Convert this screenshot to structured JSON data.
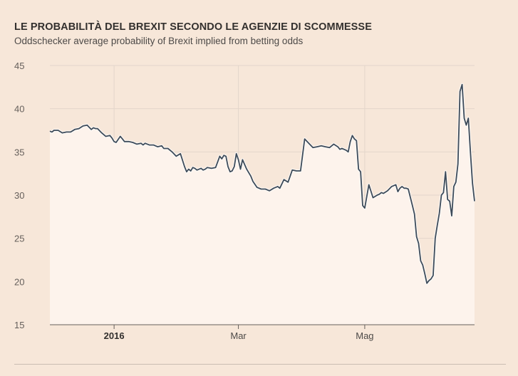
{
  "header": {
    "title": "LE PROBABILITÀ DEL BREXIT SECONDO LE AGENZIE DI SCOMMESSE",
    "subtitle": "Oddschecker average probability of Brexit implied from betting odds"
  },
  "colors": {
    "background": "#f7e7d9",
    "plot_fill": "#fdf3ec",
    "line": "#3d4b5a",
    "grid": "#e3d6cb",
    "text": "#33302e"
  },
  "chart_data": {
    "type": "area",
    "title": "LE PROBABILITÀ DEL BREXIT SECONDO LE AGENZIE DI SCOMMESSE",
    "subtitle": "Oddschecker average probability of Brexit implied from betting odds",
    "xlabel": "",
    "ylabel": "",
    "ylim": [
      15,
      45
    ],
    "xlim": [
      "2015-12-01",
      "2016-06-23"
    ],
    "yticks": [
      15,
      20,
      25,
      30,
      35,
      40,
      45
    ],
    "xticks": [
      {
        "date": "2016-01-01",
        "label": "2016",
        "bold": true
      },
      {
        "date": "2016-03-01",
        "label": "Mar",
        "bold": false
      },
      {
        "date": "2016-05-01",
        "label": "Mag",
        "bold": false
      }
    ],
    "grid": true,
    "series": [
      {
        "x": [
          "2015-12-01",
          "2015-12-02",
          "2015-12-03",
          "2015-12-05",
          "2015-12-07",
          "2015-12-09",
          "2015-12-11",
          "2015-12-13",
          "2015-12-15",
          "2015-12-17",
          "2015-12-19",
          "2015-12-21",
          "2015-12-22",
          "2015-12-23",
          "2015-12-24",
          "2015-12-26",
          "2015-12-28",
          "2015-12-30",
          "2015-12-31",
          "2016-01-01",
          "2016-01-02",
          "2016-01-04",
          "2016-01-05",
          "2016-01-06",
          "2016-01-08",
          "2016-01-10",
          "2016-01-12",
          "2016-01-14",
          "2016-01-15",
          "2016-01-16",
          "2016-01-18",
          "2016-01-20",
          "2016-01-22",
          "2016-01-24",
          "2016-01-25",
          "2016-01-27",
          "2016-01-29",
          "2016-01-31",
          "2016-02-02",
          "2016-02-04",
          "2016-02-05",
          "2016-02-06",
          "2016-02-07",
          "2016-02-08",
          "2016-02-09",
          "2016-02-10",
          "2016-02-12",
          "2016-02-13",
          "2016-02-14",
          "2016-02-15",
          "2016-02-17",
          "2016-02-19",
          "2016-02-21",
          "2016-02-22",
          "2016-02-23",
          "2016-02-24",
          "2016-02-25",
          "2016-02-26",
          "2016-02-27",
          "2016-02-28",
          "2016-02-29",
          "2016-03-01",
          "2016-03-02",
          "2016-03-03",
          "2016-03-05",
          "2016-03-07",
          "2016-03-08",
          "2016-03-10",
          "2016-03-12",
          "2016-03-14",
          "2016-03-15",
          "2016-03-16",
          "2016-03-18",
          "2016-03-20",
          "2016-03-21",
          "2016-03-23",
          "2016-03-25",
          "2016-03-27",
          "2016-03-29",
          "2016-03-31",
          "2016-04-02",
          "2016-04-04",
          "2016-04-06",
          "2016-04-08",
          "2016-04-10",
          "2016-04-12",
          "2016-04-14",
          "2016-04-16",
          "2016-04-18",
          "2016-04-19",
          "2016-04-20",
          "2016-04-21",
          "2016-04-22",
          "2016-04-23",
          "2016-04-24",
          "2016-04-25",
          "2016-04-26",
          "2016-04-27",
          "2016-04-28",
          "2016-04-29",
          "2016-04-30",
          "2016-05-01",
          "2016-05-03",
          "2016-05-05",
          "2016-05-07",
          "2016-05-08",
          "2016-05-09",
          "2016-05-10",
          "2016-05-12",
          "2016-05-14",
          "2016-05-16",
          "2016-05-17",
          "2016-05-18",
          "2016-05-19",
          "2016-05-20",
          "2016-05-21",
          "2016-05-22",
          "2016-05-24",
          "2016-05-25",
          "2016-05-26",
          "2016-05-27",
          "2016-05-28",
          "2016-05-29",
          "2016-05-30",
          "2016-05-31",
          "2016-06-01",
          "2016-06-02",
          "2016-06-03",
          "2016-06-04",
          "2016-06-05",
          "2016-06-06",
          "2016-06-07",
          "2016-06-08",
          "2016-06-09",
          "2016-06-10",
          "2016-06-11",
          "2016-06-12",
          "2016-06-13",
          "2016-06-14",
          "2016-06-15",
          "2016-06-16",
          "2016-06-17",
          "2016-06-18",
          "2016-06-19",
          "2016-06-20",
          "2016-06-21",
          "2016-06-22",
          "2016-06-23"
        ],
        "values": [
          37.4,
          37.3,
          37.5,
          37.5,
          37.2,
          37.3,
          37.3,
          37.6,
          37.7,
          38.0,
          38.1,
          37.6,
          37.8,
          37.7,
          37.7,
          37.2,
          36.8,
          36.9,
          36.6,
          36.2,
          36.1,
          36.8,
          36.5,
          36.2,
          36.2,
          36.1,
          35.9,
          36.0,
          35.8,
          36.0,
          35.8,
          35.8,
          35.6,
          35.7,
          35.4,
          35.4,
          35.0,
          34.5,
          34.8,
          33.3,
          32.7,
          33.0,
          32.8,
          33.2,
          33.1,
          32.9,
          33.1,
          32.9,
          33.0,
          33.2,
          33.1,
          33.2,
          34.5,
          34.2,
          34.6,
          34.5,
          33.3,
          32.7,
          32.8,
          33.3,
          34.8,
          34.1,
          33.0,
          34.1,
          33.0,
          32.2,
          31.6,
          30.9,
          30.7,
          30.7,
          30.6,
          30.5,
          30.8,
          31.0,
          30.8,
          31.8,
          31.5,
          32.9,
          32.8,
          32.8,
          36.5,
          36.0,
          35.5,
          35.6,
          35.7,
          35.6,
          35.5,
          35.9,
          35.6,
          35.3,
          35.4,
          35.3,
          35.2,
          35.0,
          36.2,
          36.9,
          36.5,
          36.3,
          33.0,
          32.7,
          28.8,
          28.5,
          31.2,
          29.7,
          30.0,
          30.1,
          30.3,
          30.2,
          30.5,
          31.0,
          31.2,
          30.4,
          30.8,
          31.0,
          30.8,
          30.8,
          30.7,
          28.8,
          27.8,
          25.2,
          24.4,
          22.4,
          21.9,
          20.9,
          19.8,
          20.1,
          20.3,
          20.7,
          25.0,
          26.5,
          27.9,
          30.0,
          30.3,
          32.7,
          29.5,
          29.3,
          27.6,
          31.0,
          31.5,
          33.6,
          42.0,
          42.8,
          38.9,
          38.1,
          38.9,
          35.0,
          31.4,
          29.3
        ]
      }
    ]
  }
}
